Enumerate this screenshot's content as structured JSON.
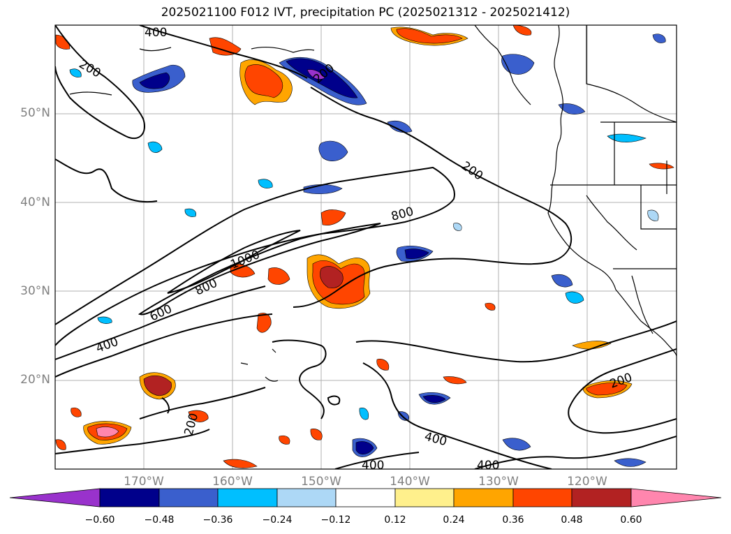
{
  "title": "2025021100 F012 IVT, precipitation PC (2025021312 - 2025021412)",
  "lat_labels": [
    "50°N",
    "40°N",
    "30°N",
    "20°N"
  ],
  "lon_labels": [
    "170°W",
    "160°W",
    "150°W",
    "140°W",
    "130°W",
    "120°W"
  ],
  "contour_labels": [
    "400",
    "200",
    "200",
    "200",
    "800",
    "1000",
    "800",
    "600",
    "400",
    "200",
    "400",
    "400",
    "400",
    "200"
  ],
  "colorbar": {
    "ticks": [
      "−0.60",
      "−0.48",
      "−0.36",
      "−0.24",
      "−0.12",
      "0.12",
      "0.24",
      "0.36",
      "0.48",
      "0.60"
    ],
    "colors": [
      "#9932cc",
      "#00008b",
      "#3a5fcd",
      "#00bfff",
      "#add8f6",
      "#ffffff",
      "#fff08c",
      "#ffa500",
      "#ff4500",
      "#b22222",
      "#ff86ae"
    ]
  }
}
